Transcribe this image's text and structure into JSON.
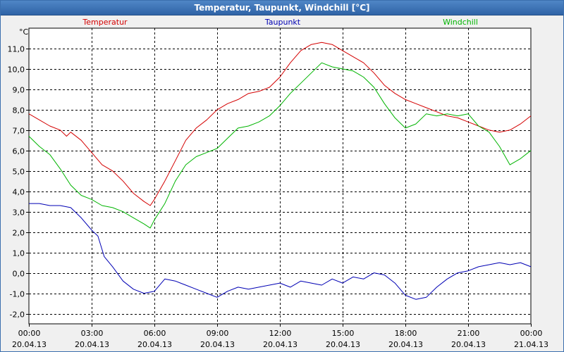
{
  "window": {
    "title": "Temperatur, Taupunkt, Windchill [°C]"
  },
  "colors": {
    "grid": "#000000",
    "temperature": "#d40000",
    "dewpoint": "#0000b4",
    "windchill": "#00b400"
  },
  "chart_data": {
    "type": "line",
    "title": "Temperatur, Taupunkt, Windchill [°C]",
    "ylabel": "°C",
    "ylim": [
      -2.5,
      12.0
    ],
    "xlim": [
      0,
      24
    ],
    "grid": true,
    "y_ticks": [
      {
        "value": -2.0,
        "label": "-2,0"
      },
      {
        "value": -1.0,
        "label": "-1,0"
      },
      {
        "value": 0.0,
        "label": "0,0"
      },
      {
        "value": 1.0,
        "label": "1,0"
      },
      {
        "value": 2.0,
        "label": "2,0"
      },
      {
        "value": 3.0,
        "label": "3,0"
      },
      {
        "value": 4.0,
        "label": "4,0"
      },
      {
        "value": 5.0,
        "label": "5,0"
      },
      {
        "value": 6.0,
        "label": "6,0"
      },
      {
        "value": 7.0,
        "label": "7,0"
      },
      {
        "value": 8.0,
        "label": "8,0"
      },
      {
        "value": 9.0,
        "label": "9,0"
      },
      {
        "value": 10.0,
        "label": "10,0"
      },
      {
        "value": 11.0,
        "label": "11,0"
      }
    ],
    "x_ticks": [
      {
        "value": 0,
        "time": "00:00",
        "date": "20.04.13"
      },
      {
        "value": 3,
        "time": "03:00",
        "date": "20.04.13"
      },
      {
        "value": 6,
        "time": "06:00",
        "date": "20.04.13"
      },
      {
        "value": 9,
        "time": "09:00",
        "date": "20.04.13"
      },
      {
        "value": 12,
        "time": "12:00",
        "date": "20.04.13"
      },
      {
        "value": 15,
        "time": "15:00",
        "date": "20.04.13"
      },
      {
        "value": 18,
        "time": "18:00",
        "date": "20.04.13"
      },
      {
        "value": 21,
        "time": "21:00",
        "date": "20.04.13"
      },
      {
        "value": 24,
        "time": "00:00",
        "date": "21.04.13"
      }
    ],
    "series": [
      {
        "name": "Temperatur",
        "color": "#d40000",
        "x": [
          0,
          0.5,
          1,
          1.5,
          1.8,
          2,
          2.5,
          3,
          3.5,
          4,
          4.5,
          5,
          5.5,
          5.8,
          6,
          6.5,
          7,
          7.5,
          8,
          8.5,
          9,
          9.5,
          10,
          10.5,
          11,
          11.5,
          12,
          12.5,
          13,
          13.5,
          14,
          14.5,
          15,
          15.5,
          16,
          16.5,
          17,
          17.5,
          18,
          18.5,
          19,
          19.5,
          20,
          20.5,
          21,
          21.5,
          22,
          22.5,
          23,
          23.5,
          24
        ],
        "values": [
          7.8,
          7.5,
          7.2,
          7.0,
          6.7,
          6.9,
          6.5,
          5.9,
          5.3,
          5.0,
          4.5,
          3.9,
          3.5,
          3.3,
          3.6,
          4.5,
          5.5,
          6.5,
          7.1,
          7.5,
          8.0,
          8.3,
          8.5,
          8.8,
          8.9,
          9.1,
          9.6,
          10.3,
          10.9,
          11.2,
          11.3,
          11.2,
          10.9,
          10.6,
          10.3,
          9.8,
          9.2,
          8.8,
          8.5,
          8.3,
          8.1,
          7.9,
          7.7,
          7.6,
          7.4,
          7.2,
          7.0,
          6.9,
          7.0,
          7.3,
          7.7
        ]
      },
      {
        "name": "Taupunkt",
        "color": "#0000b4",
        "x": [
          0,
          0.5,
          1,
          1.5,
          2,
          2.5,
          3,
          3.3,
          3.6,
          4,
          4.5,
          5,
          5.5,
          6,
          6.5,
          7,
          7.5,
          8,
          8.5,
          9,
          9.5,
          10,
          10.5,
          11,
          11.5,
          12,
          12.5,
          13,
          13.5,
          14,
          14.5,
          15,
          15.5,
          16,
          16.5,
          17,
          17.5,
          18,
          18.5,
          19,
          19.5,
          20,
          20.5,
          21,
          21.5,
          22,
          22.5,
          23,
          23.5,
          24
        ],
        "values": [
          3.4,
          3.4,
          3.3,
          3.3,
          3.2,
          2.7,
          2.1,
          1.8,
          0.8,
          0.3,
          -0.4,
          -0.8,
          -1.0,
          -0.9,
          -0.3,
          -0.4,
          -0.6,
          -0.8,
          -1.0,
          -1.2,
          -0.9,
          -0.7,
          -0.8,
          -0.7,
          -0.6,
          -0.5,
          -0.7,
          -0.4,
          -0.5,
          -0.6,
          -0.3,
          -0.5,
          -0.2,
          -0.3,
          0.0,
          -0.1,
          -0.5,
          -1.1,
          -1.3,
          -1.2,
          -0.7,
          -0.3,
          0.0,
          0.1,
          0.3,
          0.4,
          0.5,
          0.4,
          0.5,
          0.3
        ]
      },
      {
        "name": "Windchill",
        "color": "#00b400",
        "x": [
          0,
          0.5,
          1,
          1.5,
          2,
          2.5,
          3,
          3.5,
          4,
          4.5,
          5,
          5.5,
          5.8,
          6,
          6.5,
          7,
          7.5,
          8,
          8.5,
          9,
          9.5,
          10,
          10.5,
          11,
          11.5,
          12,
          12.5,
          13,
          13.5,
          14,
          14.5,
          15,
          15.5,
          16,
          16.5,
          17,
          17.5,
          18,
          18.5,
          19,
          19.5,
          20,
          20.5,
          21,
          21.5,
          22,
          22.5,
          23,
          23.5,
          24
        ],
        "values": [
          6.7,
          6.2,
          5.8,
          5.1,
          4.3,
          3.8,
          3.6,
          3.3,
          3.2,
          3.0,
          2.7,
          2.4,
          2.2,
          2.6,
          3.4,
          4.5,
          5.3,
          5.7,
          5.9,
          6.1,
          6.6,
          7.1,
          7.2,
          7.4,
          7.7,
          8.2,
          8.8,
          9.3,
          9.8,
          10.3,
          10.1,
          10.0,
          9.9,
          9.6,
          9.1,
          8.3,
          7.6,
          7.1,
          7.3,
          7.8,
          7.7,
          7.8,
          7.7,
          7.8,
          7.2,
          6.9,
          6.2,
          5.3,
          5.6,
          6.0
        ]
      }
    ]
  }
}
